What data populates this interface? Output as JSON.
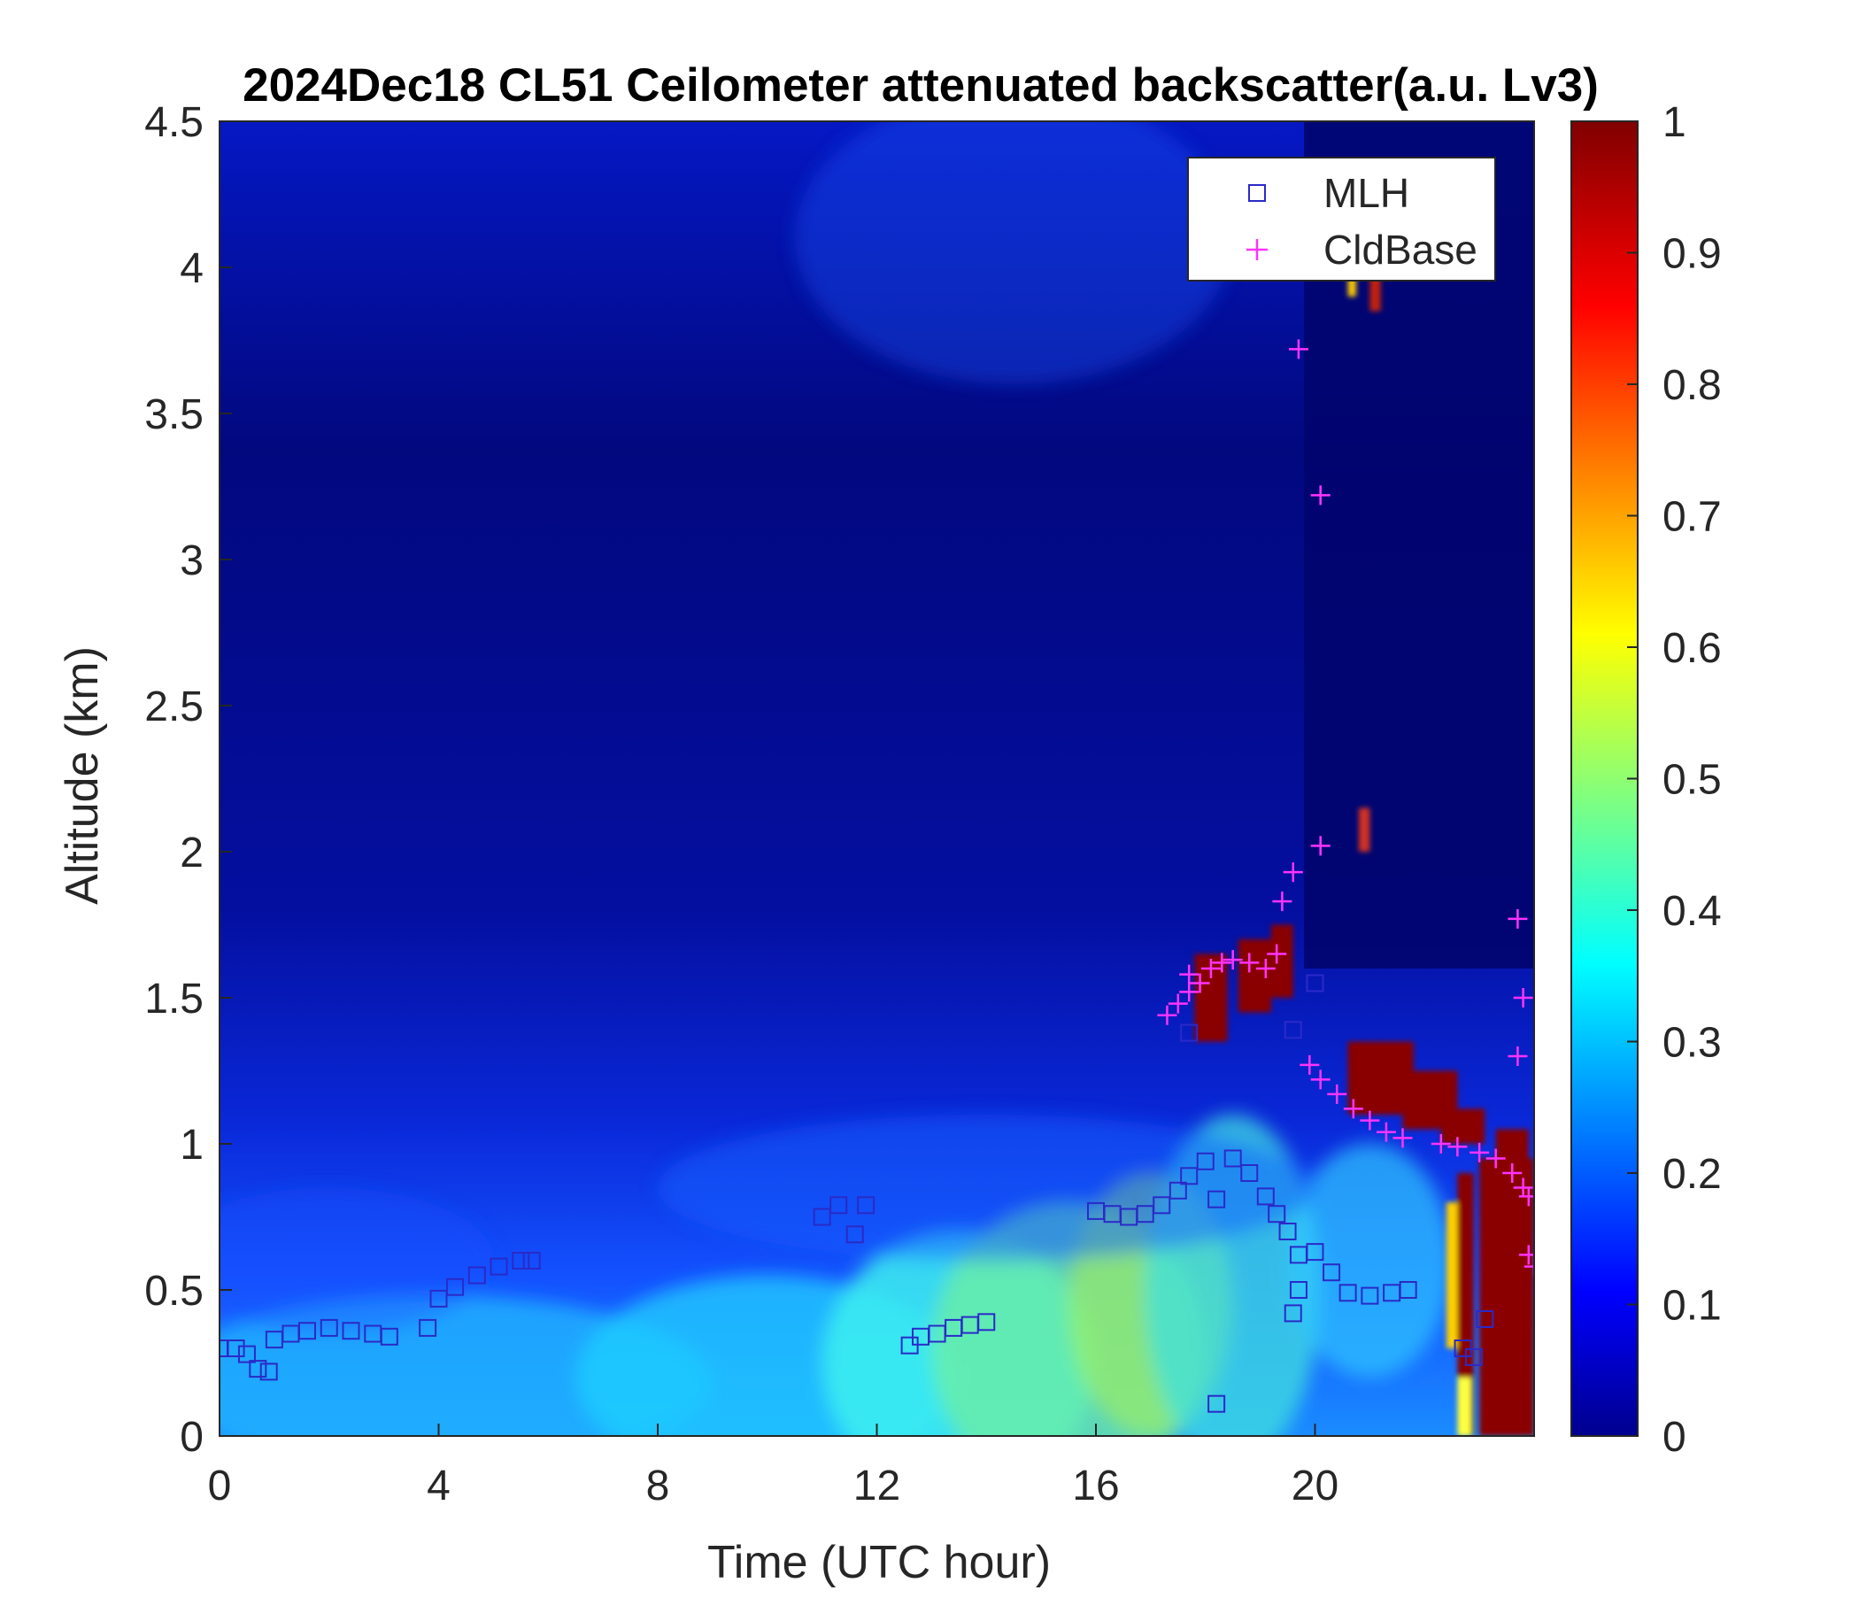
{
  "chart_data": {
    "type": "heatmap",
    "title": "2024Dec18 CL51 Ceilometer attenuated backscatter(a.u. Lv3)",
    "xlabel": "Time (UTC hour)",
    "ylabel": "Altitude (km)",
    "xlim": [
      0,
      24
    ],
    "ylim": [
      0,
      4.5
    ],
    "xticks": [
      "0",
      "4",
      "8",
      "12",
      "16",
      "20"
    ],
    "xtick_values": [
      0,
      4,
      8,
      12,
      16,
      20
    ],
    "yticks": [
      "0",
      "0.5",
      "1",
      "1.5",
      "2",
      "2.5",
      "3",
      "3.5",
      "4",
      "4.5"
    ],
    "ytick_values": [
      0,
      0.5,
      1,
      1.5,
      2,
      2.5,
      3,
      3.5,
      4,
      4.5
    ],
    "colorbar": {
      "colormap": "jet",
      "range": [
        0,
        1
      ],
      "ticks": [
        "0",
        "0.1",
        "0.2",
        "0.3",
        "0.4",
        "0.5",
        "0.6",
        "0.7",
        "0.8",
        "0.9",
        "1"
      ],
      "tick_values": [
        0,
        0.1,
        0.2,
        0.3,
        0.4,
        0.5,
        0.6,
        0.7,
        0.8,
        0.9,
        1
      ]
    },
    "legend": {
      "placement": "top-right",
      "entries": [
        {
          "label": "MLH",
          "marker": "square",
          "color": "#2a2ac8"
        },
        {
          "label": "CldBase",
          "marker": "plus",
          "color": "#ff33ff"
        }
      ]
    },
    "series": [
      {
        "name": "MLH",
        "marker": "square",
        "color": "#2a2ac8",
        "points": [
          [
            0,
            0.3
          ],
          [
            0.3,
            0.3
          ],
          [
            0.5,
            0.28
          ],
          [
            0.7,
            0.23
          ],
          [
            0.9,
            0.22
          ],
          [
            1.0,
            0.33
          ],
          [
            1.3,
            0.35
          ],
          [
            1.6,
            0.36
          ],
          [
            2.0,
            0.37
          ],
          [
            2.4,
            0.36
          ],
          [
            2.8,
            0.35
          ],
          [
            3.1,
            0.34
          ],
          [
            3.8,
            0.37
          ],
          [
            4.0,
            0.47
          ],
          [
            4.3,
            0.51
          ],
          [
            4.7,
            0.55
          ],
          [
            5.1,
            0.58
          ],
          [
            5.5,
            0.6
          ],
          [
            5.7,
            0.6
          ],
          [
            11.0,
            0.75
          ],
          [
            11.3,
            0.79
          ],
          [
            11.6,
            0.69
          ],
          [
            11.8,
            0.79
          ],
          [
            12.6,
            0.31
          ],
          [
            12.8,
            0.34
          ],
          [
            13.1,
            0.35
          ],
          [
            13.4,
            0.37
          ],
          [
            13.7,
            0.38
          ],
          [
            14.0,
            0.39
          ],
          [
            16.0,
            0.77
          ],
          [
            16.3,
            0.76
          ],
          [
            16.6,
            0.75
          ],
          [
            16.9,
            0.76
          ],
          [
            17.2,
            0.79
          ],
          [
            17.5,
            0.84
          ],
          [
            17.7,
            0.89
          ],
          [
            18.0,
            0.94
          ],
          [
            18.2,
            0.81
          ],
          [
            18.5,
            0.95
          ],
          [
            18.8,
            0.9
          ],
          [
            19.1,
            0.82
          ],
          [
            19.3,
            0.76
          ],
          [
            19.5,
            0.7
          ],
          [
            19.7,
            0.62
          ],
          [
            19.6,
            0.42
          ],
          [
            19.7,
            0.5
          ],
          [
            20.0,
            0.63
          ],
          [
            20.3,
            0.56
          ],
          [
            20.6,
            0.49
          ],
          [
            21.0,
            0.48
          ],
          [
            21.4,
            0.49
          ],
          [
            21.7,
            0.5
          ],
          [
            18.2,
            0.11
          ],
          [
            19.6,
            1.39
          ],
          [
            20.0,
            1.55
          ],
          [
            17.7,
            1.38
          ],
          [
            22.7,
            0.3
          ],
          [
            22.9,
            0.27
          ],
          [
            23.1,
            0.4
          ]
        ]
      },
      {
        "name": "CldBase",
        "marker": "plus",
        "color": "#ff33ff",
        "points": [
          [
            17.3,
            1.44
          ],
          [
            17.5,
            1.48
          ],
          [
            17.7,
            1.52
          ],
          [
            17.7,
            1.58
          ],
          [
            17.9,
            1.55
          ],
          [
            18.1,
            1.6
          ],
          [
            18.3,
            1.62
          ],
          [
            18.5,
            1.63
          ],
          [
            18.8,
            1.62
          ],
          [
            19.1,
            1.6
          ],
          [
            19.3,
            1.65
          ],
          [
            19.4,
            1.83
          ],
          [
            19.6,
            1.93
          ],
          [
            20.1,
            2.02
          ],
          [
            19.7,
            3.72
          ],
          [
            20.1,
            3.22
          ],
          [
            19.9,
            1.27
          ],
          [
            20.1,
            1.22
          ],
          [
            20.4,
            1.17
          ],
          [
            20.7,
            1.12
          ],
          [
            21.0,
            1.08
          ],
          [
            21.3,
            1.04
          ],
          [
            21.6,
            1.02
          ],
          [
            22.3,
            1.0
          ],
          [
            22.6,
            0.99
          ],
          [
            23.0,
            0.97
          ],
          [
            23.3,
            0.95
          ],
          [
            23.6,
            0.9
          ],
          [
            23.8,
            0.85
          ],
          [
            23.9,
            0.82
          ],
          [
            23.7,
            1.3
          ],
          [
            23.8,
            1.5
          ],
          [
            23.7,
            1.77
          ],
          [
            23.9,
            0.62
          ],
          [
            24.0,
            0.58
          ]
        ]
      }
    ]
  }
}
